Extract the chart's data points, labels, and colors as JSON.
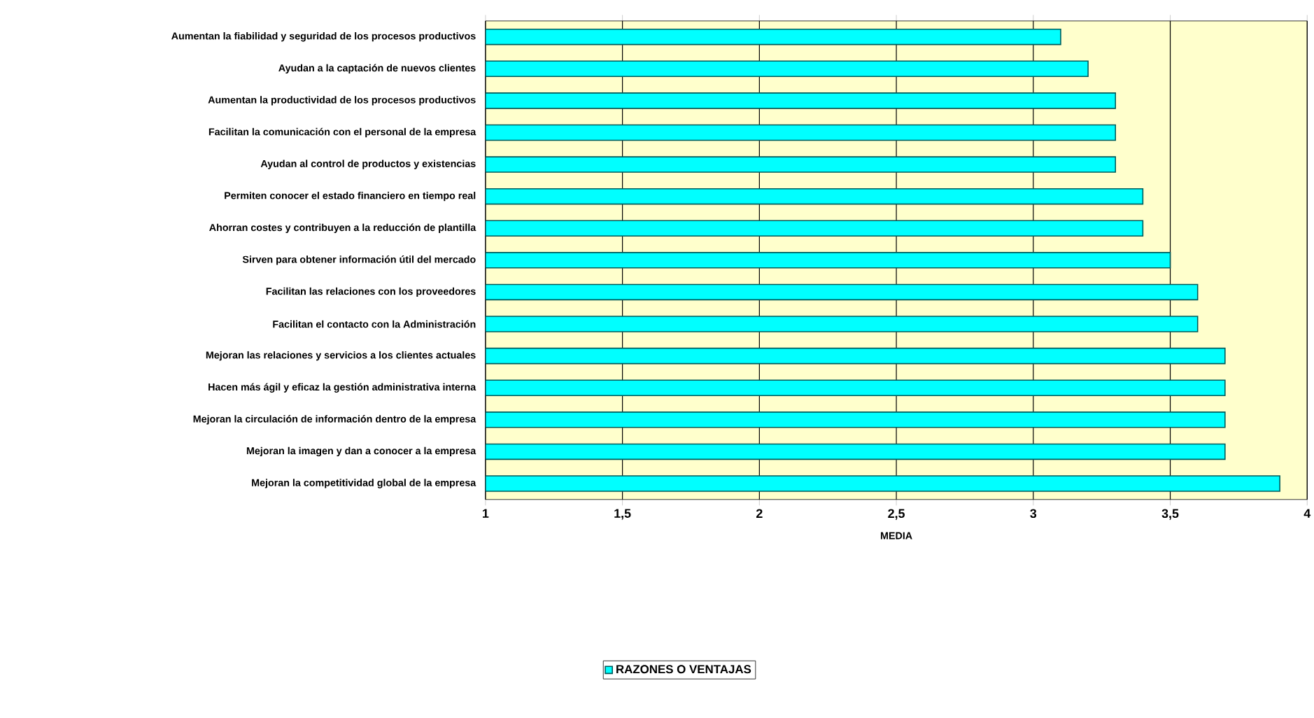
{
  "chart_data": {
    "type": "bar",
    "orientation": "horizontal",
    "xlabel": "MEDIA",
    "categories": [
      "Aumentan la fiabilidad y seguridad de los procesos productivos",
      "Ayudan a la captación de nuevos clientes",
      "Aumentan la productividad de los procesos productivos",
      "Facilitan la comunicación con el personal de la empresa",
      "Ayudan al control de productos y existencias",
      "Permiten conocer el estado financiero en tiempo real",
      "Ahorran costes y contribuyen a la reducción de plantilla",
      "Sirven para obtener información útil del mercado",
      "Facilitan las relaciones con los proveedores",
      "Facilitan el contacto con la Administración",
      "Mejoran las relaciones y servicios a los clientes actuales",
      "Hacen más ágil y eficaz la gestión administrativa interna",
      "Mejoran la circulación de información dentro de la empresa",
      "Mejoran la imagen y dan a conocer a la empresa",
      "Mejoran la competitividad global de la empresa"
    ],
    "series": [
      {
        "name": "RAZONES O VENTAJAS",
        "color": "#00ffff",
        "values": [
          3.1,
          3.2,
          3.3,
          3.3,
          3.3,
          3.4,
          3.4,
          3.5,
          3.6,
          3.6,
          3.7,
          3.7,
          3.7,
          3.7,
          3.9
        ]
      }
    ],
    "xlim": [
      1,
      4
    ],
    "xticks": [
      1,
      {
        "value": 1.5,
        "label": "1,5"
      },
      2,
      {
        "value": 2.5,
        "label": "2,5"
      },
      3,
      {
        "value": 3.5,
        "label": "3,5"
      },
      4
    ],
    "grid": "x",
    "legend": "bottom"
  }
}
